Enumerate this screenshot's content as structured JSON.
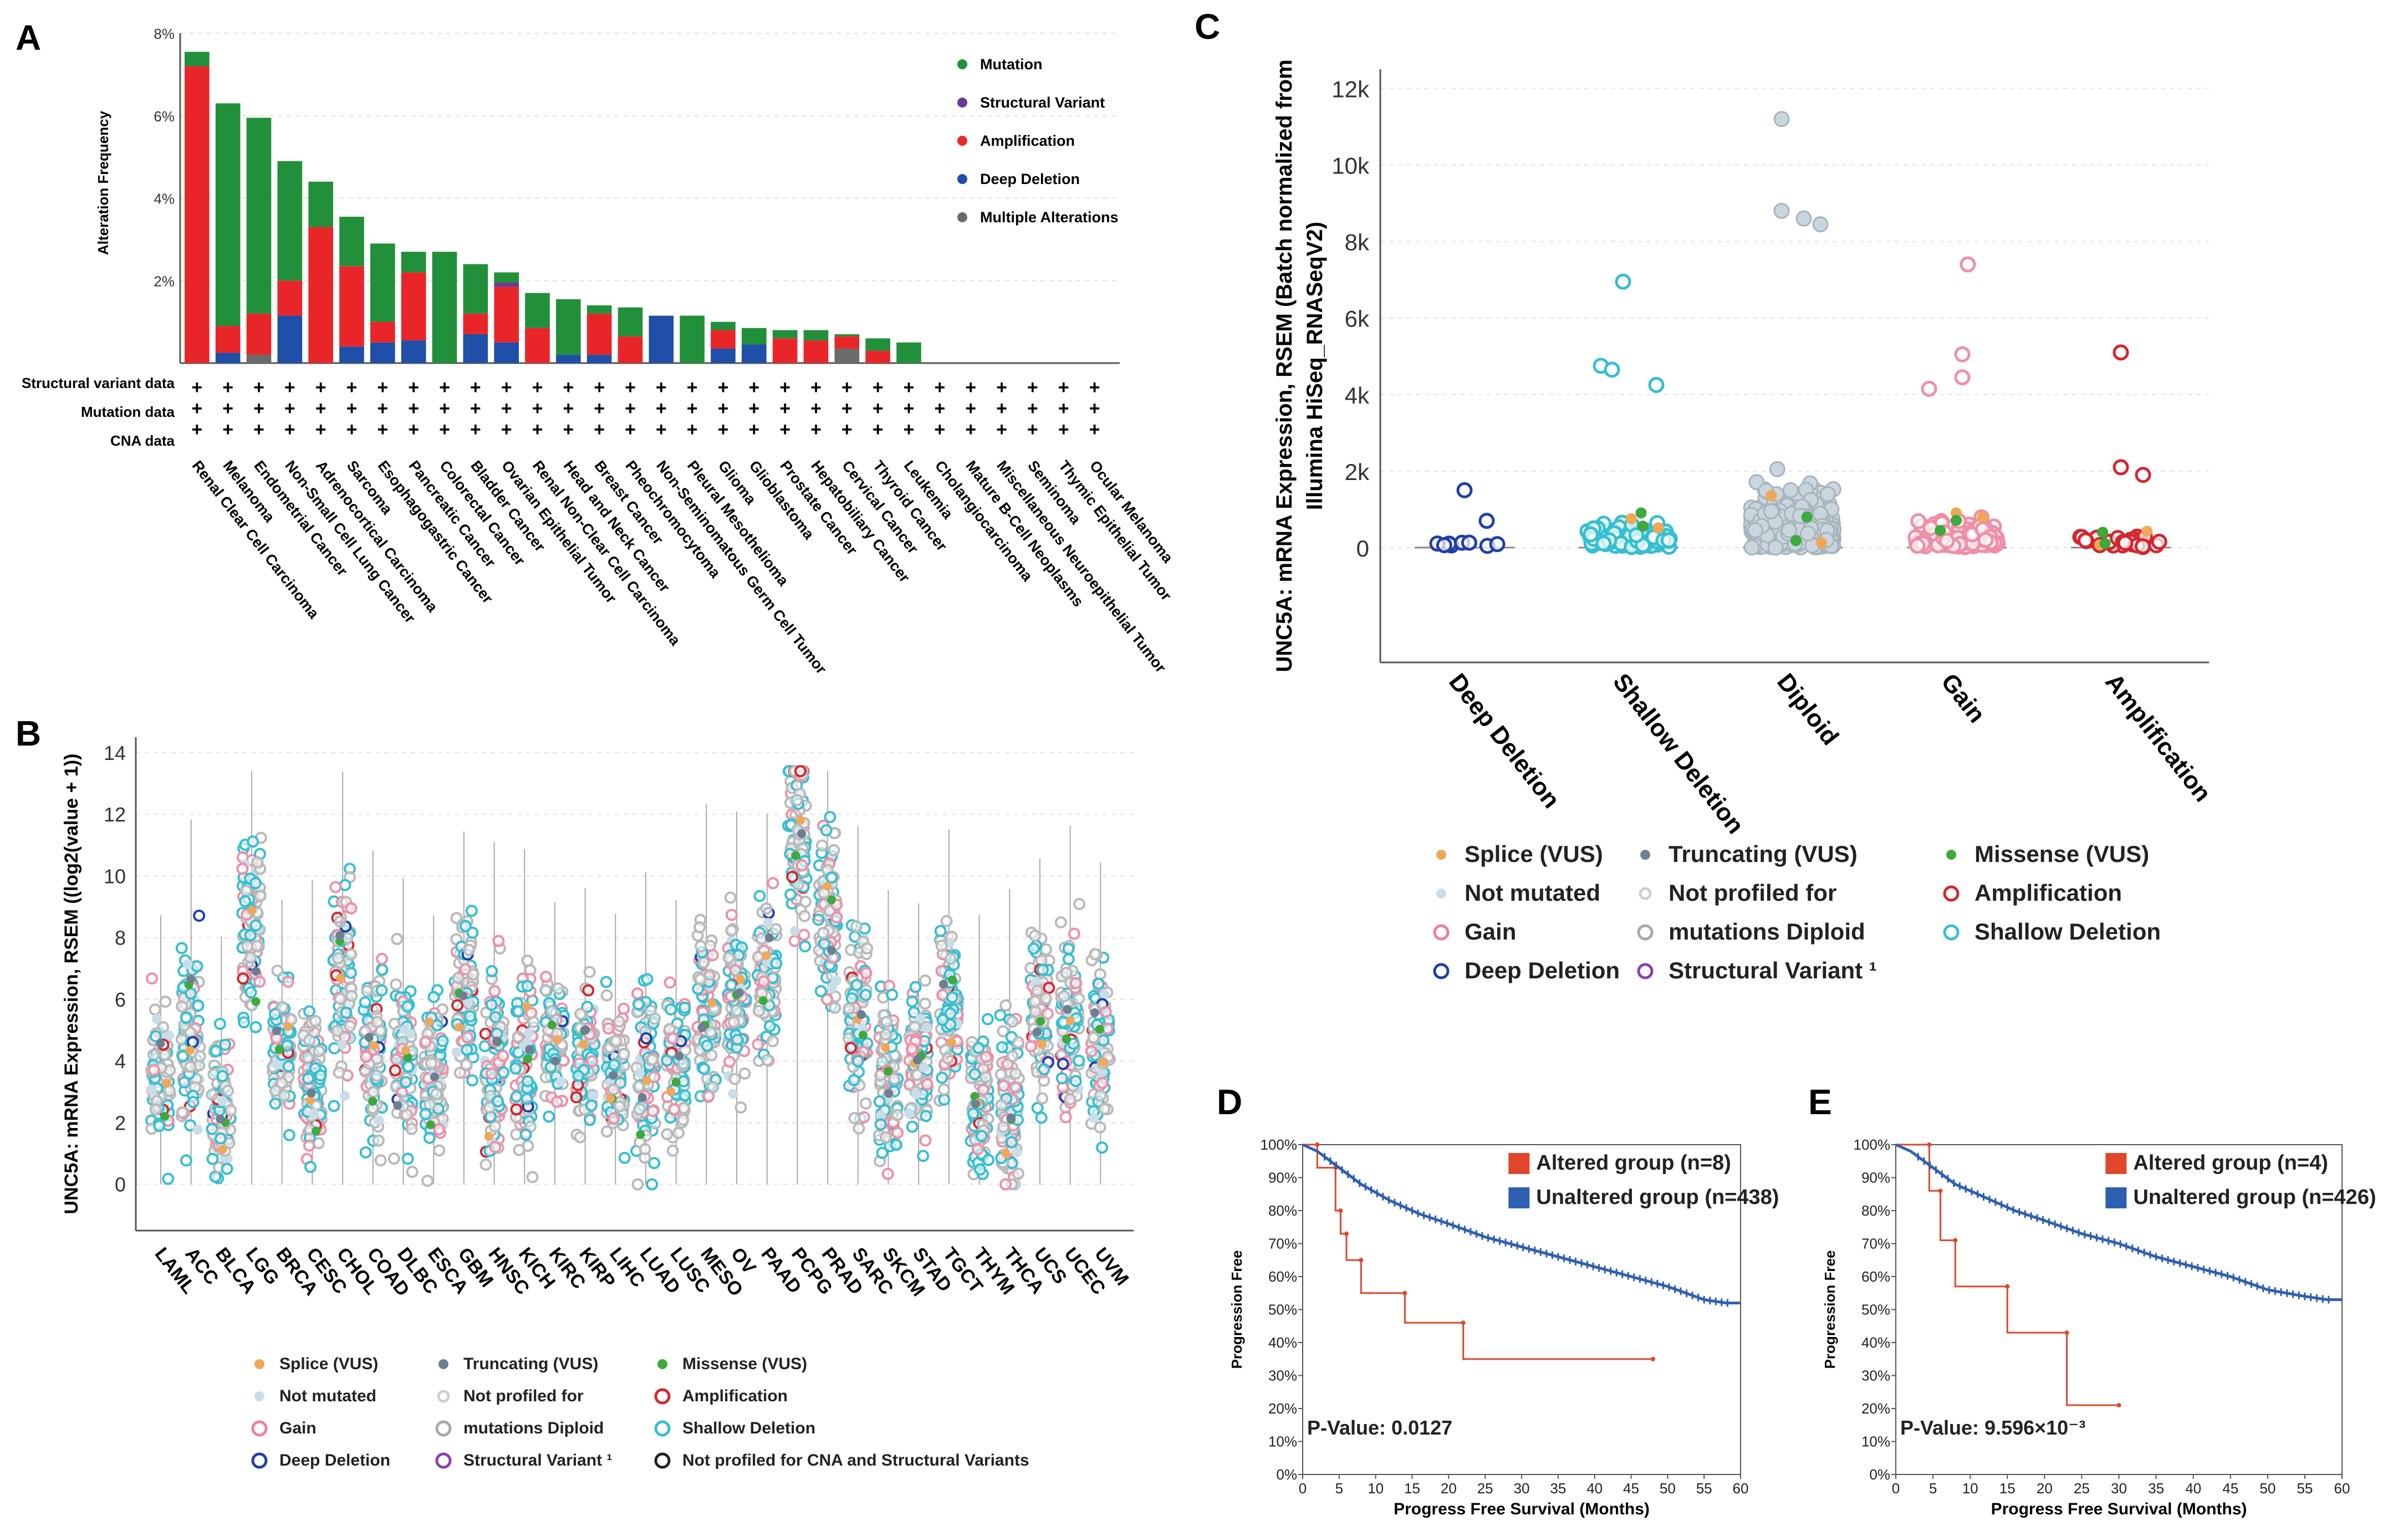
{
  "panels": {
    "A": "A",
    "B": "B",
    "C": "C",
    "D": "D",
    "E": "E"
  },
  "chart_data": [
    {
      "id": "A",
      "type": "bar",
      "ylabel": "Alteration Frequency",
      "yticks": [
        "2%",
        "4%",
        "6%",
        "8%"
      ],
      "ylim": [
        0,
        8
      ],
      "grid": true,
      "legend_position": "top-right",
      "categories": [
        "Renal Clear Cell Carcinoma",
        "Melanoma",
        "Endometrial Cancer",
        "Non-Small Cell Lung Cancer",
        "Adrenocortical Carcinoma",
        "Sarcoma",
        "Esophagogastric Cancer",
        "Pancreatic Cancer",
        "Colorectal Cancer",
        "Bladder Cancer",
        "Ovarian Epithelial Tumor",
        "Renal Non-Clear Cell Carcinoma",
        "Head and Neck Cancer",
        "Breast Cancer",
        "Pheochromocytoma",
        "Non-Seminomatous Germ Cell Tumor",
        "Pleural Mesothelioma",
        "Glioma",
        "Glioblastoma",
        "Prostate Cancer",
        "Hepatobiliary Cancer",
        "Cervical Cancer",
        "Thyroid Cancer",
        "Leukemia",
        "Cholangiocarcinoma",
        "Mature B-Cell Neoplasms",
        "Miscellaneous Neuroepithelial Tumor",
        "Seminoma",
        "Thymic Epithelial Tumor",
        "Ocular Melanoma"
      ],
      "series": [
        {
          "name": "Deep Deletion",
          "color": "#1f4fa8",
          "values": [
            0,
            0.25,
            0,
            1.15,
            0,
            0.4,
            0.5,
            0.55,
            0,
            0.7,
            0.5,
            0,
            0.2,
            0.2,
            0,
            1.15,
            0,
            0.35,
            0.45,
            0,
            0,
            0,
            0,
            0,
            0,
            0,
            0,
            0,
            0,
            0
          ]
        },
        {
          "name": "Multiple Alterations",
          "color": "#6b6b6b",
          "values": [
            0,
            0,
            0.2,
            0,
            0,
            0,
            0,
            0,
            0,
            0,
            0,
            0,
            0,
            0,
            0,
            0,
            0,
            0,
            0,
            0,
            0,
            0.35,
            0,
            0,
            0,
            0,
            0,
            0,
            0,
            0
          ]
        },
        {
          "name": "Amplification",
          "color": "#e8262a",
          "values": [
            7.2,
            0.65,
            1.0,
            0.85,
            3.3,
            1.95,
            0.5,
            1.65,
            0,
            0.5,
            1.35,
            0.85,
            0,
            1.0,
            0.65,
            0,
            0,
            0.45,
            0,
            0.6,
            0.55,
            0.3,
            0.3,
            0,
            0,
            0,
            0,
            0,
            0,
            0
          ]
        },
        {
          "name": "Structural Variant",
          "color": "#6b3a97",
          "values": [
            0,
            0,
            0,
            0,
            0,
            0,
            0,
            0,
            0,
            0,
            0.1,
            0,
            0,
            0,
            0,
            0,
            0,
            0,
            0,
            0,
            0,
            0,
            0,
            0,
            0,
            0,
            0,
            0,
            0,
            0
          ]
        },
        {
          "name": "Mutation",
          "color": "#22903a",
          "values": [
            0.35,
            5.4,
            4.75,
            2.9,
            1.1,
            1.2,
            1.9,
            0.5,
            2.7,
            1.2,
            0.25,
            0.85,
            1.35,
            0.2,
            0.7,
            0,
            1.15,
            0.2,
            0.4,
            0.2,
            0.25,
            0.05,
            0.3,
            0.5,
            0,
            0,
            0,
            0,
            0,
            0
          ]
        }
      ],
      "track_labels": [
        "Structural variant data",
        "Mutation data",
        "CNA data"
      ],
      "track_marker": "+"
    },
    {
      "id": "B",
      "type": "scatter",
      "ylabel": "UNC5A: mRNA Expression, RSEM ((log2(value + 1))",
      "ylim": [
        -1.5,
        14.5
      ],
      "yticks": [
        "0",
        "2",
        "4",
        "6",
        "8",
        "10",
        "12",
        "14"
      ],
      "grid": true,
      "categories": [
        "LAML",
        "ACC",
        "BLCA",
        "LGG",
        "BRCA",
        "CESC",
        "CHOL",
        "COAD",
        "DLBC",
        "ESCA",
        "GBM",
        "HNSC",
        "KICH",
        "KIRC",
        "KIRP",
        "LIHC",
        "LUAD",
        "LUSC",
        "MESO",
        "OV",
        "PAAD",
        "PCPG",
        "PRAD",
        "SARC",
        "SKCM",
        "STAD",
        "TGCT",
        "THYM",
        "THCA",
        "UCS",
        "UCEC",
        "UVM"
      ],
      "medians": [
        3.5,
        5.0,
        2.5,
        8.5,
        4.5,
        3.0,
        6.5,
        4.0,
        4.0,
        3.5,
        6.0,
        4.0,
        4.0,
        4.5,
        4.0,
        3.5,
        3.5,
        3.5,
        5.5,
        6.0,
        6.5,
        11.5,
        8.5,
        5.0,
        3.5,
        4.0,
        5.5,
        2.5,
        2.5,
        5.5,
        5.0,
        4.5
      ],
      "legend": [
        "Splice (VUS)",
        "Truncating (VUS)",
        "Missense (VUS)",
        "Not mutated",
        "Not profiled for",
        "Amplification",
        "Gain",
        "mutations Diploid",
        "Shallow Deletion",
        "Deep Deletion",
        "Structural Variant ¹",
        "Not profiled for CNA and Structural Variants"
      ]
    },
    {
      "id": "C",
      "type": "scatter",
      "ylabel_lines": [
        "UNC5A: mRNA Expression, RSEM (Batch normalized from",
        "Illumina HiSeq_RNASeqV2)"
      ],
      "yticks": [
        "0",
        "2k",
        "4k",
        "6k",
        "8k",
        "10k",
        "12k"
      ],
      "ylim": [
        -3000,
        12500
      ],
      "grid": true,
      "categories": [
        "Deep Deletion",
        "Shallow Deletion",
        "Diploid",
        "Gain",
        "Amplification"
      ],
      "outliers": [
        [
          0,
          1500
        ],
        [
          0,
          700
        ],
        [
          1,
          6950
        ],
        [
          1,
          4750
        ],
        [
          1,
          4650
        ],
        [
          1,
          4250
        ],
        [
          2,
          11200
        ],
        [
          2,
          8800
        ],
        [
          2,
          8600
        ],
        [
          2,
          8450
        ],
        [
          3,
          7400
        ],
        [
          3,
          5050
        ],
        [
          3,
          4450
        ],
        [
          3,
          4150
        ],
        [
          4,
          5100
        ],
        [
          4,
          2100
        ],
        [
          4,
          1900
        ]
      ],
      "legend": [
        "Splice (VUS)",
        "Truncating (VUS)",
        "Missense (VUS)",
        "Not mutated",
        "Not profiled for",
        "Amplification",
        "Gain",
        "mutations Diploid",
        "Shallow Deletion",
        "Deep Deletion",
        "Structural Variant ¹"
      ]
    },
    {
      "id": "D",
      "type": "line",
      "xlabel": "Progress Free Survival (Months)",
      "ylabel": "Progression Free",
      "xticks": [
        "0",
        "5",
        "10",
        "15",
        "20",
        "25",
        "30",
        "35",
        "40",
        "45",
        "50",
        "55",
        "60"
      ],
      "yticks": [
        "0%",
        "10%",
        "20%",
        "30%",
        "40%",
        "50%",
        "60%",
        "70%",
        "80%",
        "90%",
        "100%"
      ],
      "xlim": [
        0,
        60
      ],
      "ylim": [
        0,
        100
      ],
      "pvalue": "P-Value: 0.0127",
      "series": [
        {
          "name": "Altered group (n=8)",
          "color": "#e0462a",
          "points": [
            [
              0,
              100
            ],
            [
              2,
              100
            ],
            [
              2,
              93
            ],
            [
              4.5,
              93
            ],
            [
              4.5,
              80
            ],
            [
              5.2,
              80
            ],
            [
              5.2,
              73
            ],
            [
              6,
              73
            ],
            [
              6,
              65
            ],
            [
              8,
              65
            ],
            [
              8,
              55
            ],
            [
              14,
              55
            ],
            [
              14,
              46
            ],
            [
              22,
              46
            ],
            [
              22,
              35
            ],
            [
              48,
              35
            ]
          ]
        },
        {
          "name": "Unaltered group (n=438)",
          "color": "#2f5fb0",
          "points": [
            [
              0,
              100
            ],
            [
              2,
              98
            ],
            [
              5,
              93
            ],
            [
              8,
              88
            ],
            [
              12,
              83
            ],
            [
              16,
              79
            ],
            [
              20,
              76
            ],
            [
              25,
              72
            ],
            [
              30,
              69
            ],
            [
              35,
              66
            ],
            [
              40,
              63
            ],
            [
              45,
              60
            ],
            [
              50,
              57
            ],
            [
              55,
              53
            ],
            [
              58,
              52
            ],
            [
              60,
              52
            ]
          ]
        }
      ]
    },
    {
      "id": "E",
      "type": "line",
      "xlabel": "Progress Free Survival (Months)",
      "ylabel": "Progression Free",
      "xticks": [
        "0",
        "5",
        "10",
        "15",
        "20",
        "25",
        "30",
        "35",
        "40",
        "45",
        "50",
        "55",
        "60"
      ],
      "yticks": [
        "0%",
        "10%",
        "20%",
        "30%",
        "40%",
        "50%",
        "60%",
        "70%",
        "80%",
        "90%",
        "100%"
      ],
      "xlim": [
        0,
        60
      ],
      "ylim": [
        0,
        100
      ],
      "pvalue": "P-Value: 9.596×10⁻³",
      "series": [
        {
          "name": "Altered group (n=4)",
          "color": "#e0462a",
          "points": [
            [
              0,
              100
            ],
            [
              4.5,
              100
            ],
            [
              4.5,
              86
            ],
            [
              6,
              86
            ],
            [
              6,
              71
            ],
            [
              8,
              71
            ],
            [
              8,
              57
            ],
            [
              15,
              57
            ],
            [
              15,
              43
            ],
            [
              23,
              43
            ],
            [
              23,
              21
            ],
            [
              30,
              21
            ]
          ]
        },
        {
          "name": "Unaltered group (n=426)",
          "color": "#2f5fb0",
          "points": [
            [
              0,
              100
            ],
            [
              2,
              98
            ],
            [
              5,
              93
            ],
            [
              8,
              88
            ],
            [
              12,
              84
            ],
            [
              16,
              80
            ],
            [
              20,
              77
            ],
            [
              25,
              73
            ],
            [
              30,
              70
            ],
            [
              35,
              66
            ],
            [
              40,
              63
            ],
            [
              45,
              60
            ],
            [
              50,
              56
            ],
            [
              55,
              54
            ],
            [
              58,
              53
            ],
            [
              60,
              53
            ]
          ]
        }
      ]
    }
  ]
}
